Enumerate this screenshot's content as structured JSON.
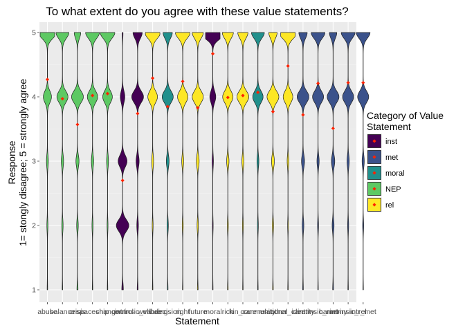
{
  "chart_data": {
    "type": "violin",
    "title": "To what extent do you agree with these value statements?",
    "xlabel": "Statement",
    "ylabel_line1": "Response",
    "ylabel_line2": "1= stongly disagree; 5 = strongly agree",
    "ylim": [
      1,
      5
    ],
    "y_ticks": [
      1,
      2,
      3,
      4,
      5
    ],
    "grid": true,
    "legend": {
      "title_line1": "Category of Value",
      "title_line2": "Statement",
      "placement": "right",
      "entries": [
        {
          "key": "inst",
          "label": "inst",
          "color": "#440154"
        },
        {
          "key": "met",
          "label": "met",
          "color": "#3b528b"
        },
        {
          "key": "moral",
          "label": "moral",
          "color": "#21908c"
        },
        {
          "key": "NEP",
          "label": "NEP",
          "color": "#5dc963"
        },
        {
          "key": "rel",
          "label": "rel",
          "color": "#fde725"
        }
      ]
    },
    "mean_marker_color": "#ff2200",
    "categories": [
      "abuse",
      "balance",
      "crisis",
      "spaceship",
      "change",
      "control",
      "intrinsic_value",
      "wellbeing",
      "decision",
      "right",
      "future",
      "moral",
      "rich",
      "kin_care",
      "community",
      "relational",
      "other_care",
      "identity",
      "intrinsic_met",
      "harmony",
      "intrinsic_rel",
      "intr_met"
    ],
    "series": [
      {
        "statement": "abuse",
        "category": "NEP",
        "density": [
          0.02,
          0.06,
          0.12,
          0.55,
          1.0
        ],
        "mean": 4.27
      },
      {
        "statement": "balance",
        "category": "NEP",
        "density": [
          0.02,
          0.08,
          0.15,
          0.75,
          0.7
        ],
        "mean": 3.97
      },
      {
        "statement": "crisis",
        "category": "NEP",
        "density": [
          0.05,
          0.1,
          0.2,
          0.8,
          0.35
        ],
        "mean": 3.57
      },
      {
        "statement": "spaceship",
        "category": "NEP",
        "density": [
          0.02,
          0.06,
          0.15,
          0.7,
          0.75
        ],
        "mean": 4.02
      },
      {
        "statement": "change",
        "category": "NEP",
        "density": [
          0.02,
          0.05,
          0.12,
          0.65,
          0.8
        ],
        "mean": 4.05
      },
      {
        "statement": "control",
        "category": "inst",
        "density": [
          0.08,
          0.85,
          0.6,
          0.3,
          0.04
        ],
        "mean": 2.7
      },
      {
        "statement": "intrinsic_value",
        "category": "inst",
        "density": [
          0.04,
          0.1,
          0.2,
          0.8,
          0.5
        ],
        "mean": 3.74
      },
      {
        "statement": "wellbeing",
        "category": "rel",
        "density": [
          0.02,
          0.05,
          0.12,
          0.65,
          0.85
        ],
        "mean": 4.29
      },
      {
        "statement": "decision",
        "category": "moral",
        "density": [
          0.03,
          0.08,
          0.18,
          0.75,
          0.5
        ],
        "mean": 3.85
      },
      {
        "statement": "right",
        "category": "rel",
        "density": [
          0.02,
          0.06,
          0.12,
          0.7,
          0.8
        ],
        "mean": 4.24
      },
      {
        "statement": "future",
        "category": "rel",
        "density": [
          0.03,
          0.08,
          0.18,
          0.75,
          0.6
        ],
        "mean": 3.83
      },
      {
        "statement": "moral",
        "category": "inst",
        "density": [
          0.02,
          0.04,
          0.08,
          0.4,
          1.5
        ],
        "mean": 4.67
      },
      {
        "statement": "rich",
        "category": "rel",
        "density": [
          0.03,
          0.06,
          0.15,
          0.7,
          0.6
        ],
        "mean": 3.99
      },
      {
        "statement": "kin_care",
        "category": "rel",
        "density": [
          0.02,
          0.05,
          0.12,
          0.8,
          0.55
        ],
        "mean": 4.02
      },
      {
        "statement": "community",
        "category": "moral",
        "density": [
          0.02,
          0.05,
          0.12,
          0.7,
          0.7
        ],
        "mean": 4.07
      },
      {
        "statement": "relational",
        "category": "rel",
        "density": [
          0.03,
          0.08,
          0.18,
          0.8,
          0.45
        ],
        "mean": 3.77
      },
      {
        "statement": "other_care",
        "category": "rel",
        "density": [
          0.02,
          0.04,
          0.1,
          0.65,
          1.0
        ],
        "mean": 4.48
      },
      {
        "statement": "identity",
        "category": "met",
        "density": [
          0.03,
          0.1,
          0.2,
          0.8,
          0.45
        ],
        "mean": 3.72
      },
      {
        "statement": "intrinsic_met",
        "category": "met",
        "density": [
          0.02,
          0.06,
          0.14,
          0.75,
          0.75
        ],
        "mean": 4.21
      },
      {
        "statement": "harmony",
        "category": "met",
        "density": [
          0.04,
          0.12,
          0.22,
          0.8,
          0.4
        ],
        "mean": 3.51
      },
      {
        "statement": "intrinsic_rel",
        "category": "met",
        "density": [
          0.02,
          0.06,
          0.14,
          0.75,
          0.75
        ],
        "mean": 4.22
      },
      {
        "statement": "intr_met",
        "category": "met",
        "density": [
          0.02,
          0.06,
          0.14,
          0.75,
          0.75
        ],
        "mean": 4.22
      }
    ]
  }
}
